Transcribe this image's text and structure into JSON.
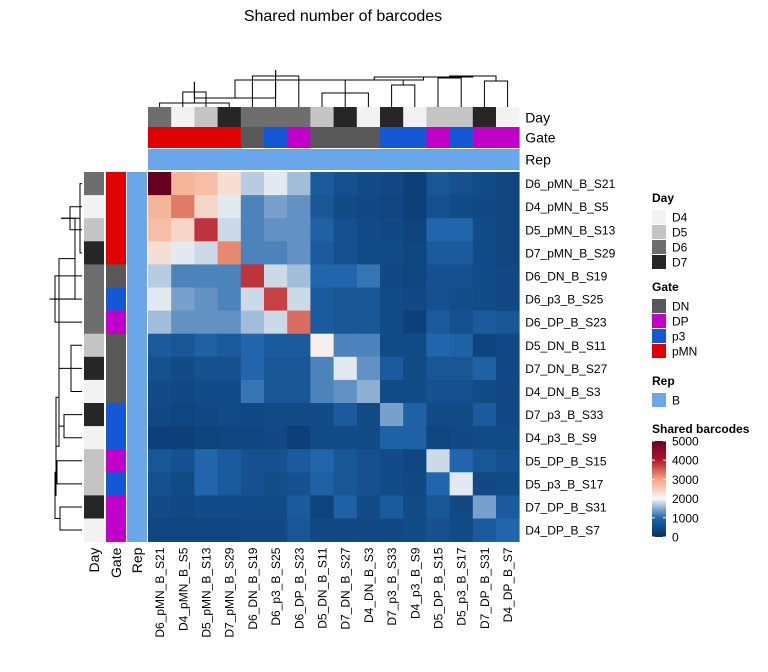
{
  "chart_data": {
    "type": "heatmap",
    "title": "Shared number of barcodes",
    "rows": [
      "D6_pMN_B_S21",
      "D4_pMN_B_S5",
      "D5_pMN_B_S13",
      "D7_pMN_B_S29",
      "D6_DN_B_S19",
      "D6_p3_B_S25",
      "D6_DP_B_S23",
      "D5_DN_B_S11",
      "D7_DN_B_S27",
      "D4_DN_B_S3",
      "D7_p3_B_S33",
      "D4_p3_B_S9",
      "D5_DP_B_S15",
      "D5_p3_B_S17",
      "D7_DP_B_S31",
      "D4_DP_B_S7"
    ],
    "columns": [
      "D6_pMN_B_S21",
      "D4_pMN_B_S5",
      "D5_pMN_B_S13",
      "D7_pMN_B_S29",
      "D6_DN_B_S19",
      "D6_p3_B_S25",
      "D6_DP_B_S23",
      "D5_DN_B_S11",
      "D7_DN_B_S27",
      "D4_DN_B_S3",
      "D7_p3_B_S33",
      "D4_p3_B_S9",
      "D5_DP_B_S15",
      "D5_p3_B_S17",
      "D7_DP_B_S31",
      "D4_DP_B_S7"
    ],
    "values": [
      [
        5000,
        2800,
        2700,
        2300,
        1700,
        1900,
        1600,
        800,
        600,
        500,
        450,
        300,
        700,
        600,
        500,
        400
      ],
      [
        2800,
        3300,
        2400,
        1900,
        1200,
        1400,
        1300,
        700,
        500,
        450,
        400,
        300,
        600,
        500,
        450,
        400
      ],
      [
        2700,
        2400,
        3800,
        1800,
        1200,
        1300,
        1300,
        900,
        600,
        500,
        450,
        350,
        1000,
        1000,
        500,
        400
      ],
      [
        2300,
        1900,
        1800,
        3200,
        1200,
        1200,
        1300,
        800,
        600,
        500,
        500,
        400,
        800,
        800,
        500,
        400
      ],
      [
        1700,
        1200,
        1200,
        1200,
        3800,
        1800,
        1600,
        1000,
        1000,
        1100,
        450,
        400,
        600,
        600,
        500,
        450
      ],
      [
        1900,
        1400,
        1300,
        1200,
        1800,
        3700,
        1800,
        800,
        700,
        700,
        500,
        450,
        600,
        550,
        500,
        450
      ],
      [
        1600,
        1300,
        1300,
        1300,
        1600,
        1800,
        3400,
        800,
        700,
        700,
        500,
        300,
        800,
        600,
        800,
        700
      ],
      [
        800,
        700,
        900,
        800,
        1000,
        800,
        800,
        2100,
        1200,
        1200,
        500,
        500,
        1000,
        900,
        350,
        450
      ],
      [
        600,
        500,
        600,
        600,
        1000,
        700,
        700,
        1200,
        1900,
        1300,
        800,
        500,
        700,
        700,
        900,
        450
      ],
      [
        500,
        450,
        500,
        500,
        1100,
        700,
        700,
        1200,
        1300,
        1500,
        500,
        500,
        600,
        600,
        500,
        450
      ],
      [
        450,
        400,
        450,
        500,
        450,
        500,
        500,
        500,
        800,
        500,
        1400,
        900,
        500,
        500,
        800,
        450
      ],
      [
        300,
        300,
        350,
        400,
        400,
        450,
        300,
        500,
        500,
        500,
        900,
        900,
        400,
        450,
        500,
        500
      ],
      [
        700,
        600,
        1000,
        800,
        600,
        600,
        800,
        1000,
        700,
        600,
        500,
        400,
        1800,
        1000,
        700,
        600
      ],
      [
        600,
        500,
        1000,
        800,
        600,
        550,
        600,
        900,
        700,
        600,
        500,
        450,
        1000,
        1900,
        450,
        500
      ],
      [
        500,
        450,
        500,
        500,
        500,
        500,
        800,
        350,
        900,
        500,
        800,
        500,
        700,
        450,
        1400,
        800
      ],
      [
        400,
        400,
        400,
        400,
        450,
        450,
        700,
        450,
        450,
        450,
        450,
        500,
        600,
        500,
        800,
        1000
      ]
    ],
    "column_annotations": {
      "Day": [
        "D6",
        "D4",
        "D5",
        "D7",
        "D6",
        "D6",
        "D6",
        "D5",
        "D7",
        "D4",
        "D7",
        "D4",
        "D5",
        "D5",
        "D7",
        "D4"
      ],
      "Gate": [
        "pMN",
        "pMN",
        "pMN",
        "pMN",
        "DN",
        "p3",
        "DP",
        "DN",
        "DN",
        "DN",
        "p3",
        "p3",
        "DP",
        "p3",
        "DP",
        "DP"
      ],
      "Rep": [
        "B",
        "B",
        "B",
        "B",
        "B",
        "B",
        "B",
        "B",
        "B",
        "B",
        "B",
        "B",
        "B",
        "B",
        "B",
        "B"
      ]
    },
    "row_annotations": {
      "Day": [
        "D6",
        "D4",
        "D5",
        "D7",
        "D6",
        "D6",
        "D6",
        "D5",
        "D7",
        "D4",
        "D7",
        "D4",
        "D5",
        "D5",
        "D7",
        "D4"
      ],
      "Gate": [
        "pMN",
        "pMN",
        "pMN",
        "pMN",
        "DN",
        "p3",
        "DP",
        "DN",
        "DN",
        "DN",
        "p3",
        "p3",
        "DP",
        "p3",
        "DP",
        "DP"
      ],
      "Rep": [
        "B",
        "B",
        "B",
        "B",
        "B",
        "B",
        "B",
        "B",
        "B",
        "B",
        "B",
        "B",
        "B",
        "B",
        "B",
        "B"
      ]
    },
    "annotation_labels": [
      "Day",
      "Gate",
      "Rep"
    ],
    "legend": {
      "day": {
        "title": "Day",
        "items": [
          {
            "label": "D4",
            "color": "#f2f2f2"
          },
          {
            "label": "D5",
            "color": "#c4c4c4"
          },
          {
            "label": "D6",
            "color": "#6e6e6e"
          },
          {
            "label": "D7",
            "color": "#262626"
          }
        ]
      },
      "gate": {
        "title": "Gate",
        "items": [
          {
            "label": "DN",
            "color": "#585858"
          },
          {
            "label": "DP",
            "color": "#c000c8"
          },
          {
            "label": "p3",
            "color": "#1558d6"
          },
          {
            "label": "pMN",
            "color": "#e00000"
          }
        ]
      },
      "rep": {
        "title": "Rep",
        "items": [
          {
            "label": "B",
            "color": "#6aa6ea"
          }
        ]
      },
      "scale": {
        "title": "Shared barcodes",
        "ticks": [
          5000,
          4000,
          3000,
          2000,
          1000,
          0
        ],
        "range": [
          0,
          5000
        ]
      }
    }
  }
}
